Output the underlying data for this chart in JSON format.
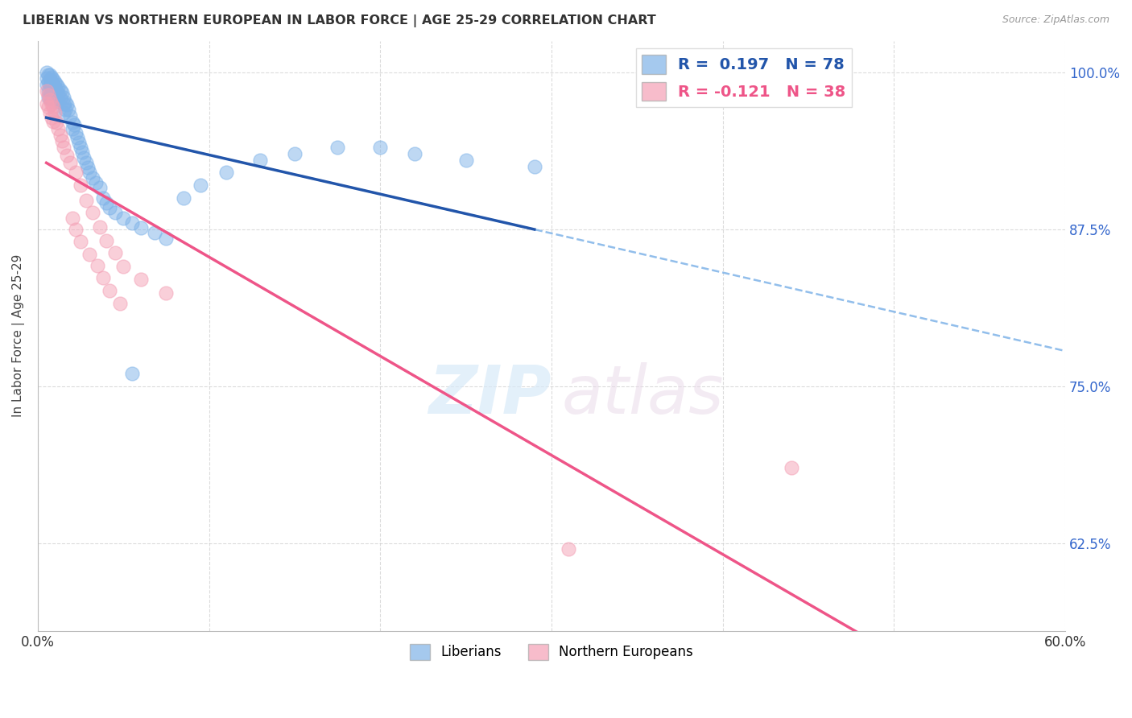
{
  "title": "LIBERIAN VS NORTHERN EUROPEAN IN LABOR FORCE | AGE 25-29 CORRELATION CHART",
  "source": "Source: ZipAtlas.com",
  "ylabel": "In Labor Force | Age 25-29",
  "xlim": [
    0.0,
    0.6
  ],
  "ylim": [
    0.555,
    1.025
  ],
  "yticks": [
    0.625,
    0.75,
    0.875,
    1.0
  ],
  "ytick_labels": [
    "62.5%",
    "75.0%",
    "87.5%",
    "100.0%"
  ],
  "liberian_R": 0.197,
  "liberian_N": 78,
  "northern_R": -0.121,
  "northern_N": 38,
  "blue_color": "#7FB3E8",
  "pink_color": "#F4A0B5",
  "trend_blue": "#2255AA",
  "trend_pink": "#EE5588",
  "legend_entries": [
    "Liberians",
    "Northern Europeans"
  ],
  "liberian_x": [
    0.005,
    0.005,
    0.005,
    0.006,
    0.006,
    0.006,
    0.006,
    0.007,
    0.007,
    0.007,
    0.007,
    0.007,
    0.008,
    0.008,
    0.008,
    0.008,
    0.008,
    0.009,
    0.009,
    0.009,
    0.009,
    0.01,
    0.01,
    0.01,
    0.01,
    0.01,
    0.011,
    0.011,
    0.011,
    0.012,
    0.012,
    0.012,
    0.013,
    0.013,
    0.014,
    0.015,
    0.015,
    0.015,
    0.016,
    0.016,
    0.017,
    0.018,
    0.019,
    0.02,
    0.02,
    0.021,
    0.022,
    0.023,
    0.024,
    0.025,
    0.026,
    0.027,
    0.028,
    0.029,
    0.03,
    0.032,
    0.034,
    0.036,
    0.038,
    0.04,
    0.042,
    0.045,
    0.05,
    0.055,
    0.06,
    0.068,
    0.075,
    0.085,
    0.095,
    0.11,
    0.13,
    0.15,
    0.175,
    0.2,
    0.22,
    0.25,
    0.29,
    0.055
  ],
  "liberian_y": [
    1.0,
    0.995,
    0.99,
    0.998,
    0.992,
    0.985,
    0.98,
    0.998,
    0.994,
    0.99,
    0.985,
    0.98,
    0.996,
    0.992,
    0.988,
    0.984,
    0.978,
    0.994,
    0.99,
    0.986,
    0.98,
    0.992,
    0.988,
    0.984,
    0.98,
    0.976,
    0.99,
    0.985,
    0.978,
    0.988,
    0.983,
    0.977,
    0.986,
    0.979,
    0.984,
    0.98,
    0.975,
    0.968,
    0.976,
    0.97,
    0.974,
    0.97,
    0.965,
    0.96,
    0.955,
    0.958,
    0.952,
    0.948,
    0.944,
    0.94,
    0.936,
    0.932,
    0.928,
    0.924,
    0.92,
    0.916,
    0.912,
    0.908,
    0.9,
    0.896,
    0.892,
    0.888,
    0.884,
    0.88,
    0.876,
    0.872,
    0.868,
    0.9,
    0.91,
    0.92,
    0.93,
    0.935,
    0.94,
    0.94,
    0.935,
    0.93,
    0.925,
    0.76
  ],
  "northern_x": [
    0.005,
    0.005,
    0.006,
    0.006,
    0.007,
    0.007,
    0.008,
    0.008,
    0.009,
    0.009,
    0.01,
    0.011,
    0.012,
    0.013,
    0.014,
    0.015,
    0.017,
    0.019,
    0.022,
    0.025,
    0.028,
    0.032,
    0.036,
    0.04,
    0.045,
    0.05,
    0.06,
    0.075,
    0.02,
    0.022,
    0.025,
    0.03,
    0.035,
    0.038,
    0.042,
    0.048,
    0.31,
    0.44
  ],
  "northern_y": [
    0.985,
    0.975,
    0.982,
    0.972,
    0.978,
    0.968,
    0.975,
    0.964,
    0.972,
    0.961,
    0.968,
    0.96,
    0.955,
    0.95,
    0.945,
    0.94,
    0.934,
    0.928,
    0.92,
    0.91,
    0.898,
    0.888,
    0.877,
    0.866,
    0.856,
    0.845,
    0.835,
    0.824,
    0.884,
    0.875,
    0.865,
    0.855,
    0.846,
    0.836,
    0.826,
    0.816,
    0.62,
    0.685
  ]
}
